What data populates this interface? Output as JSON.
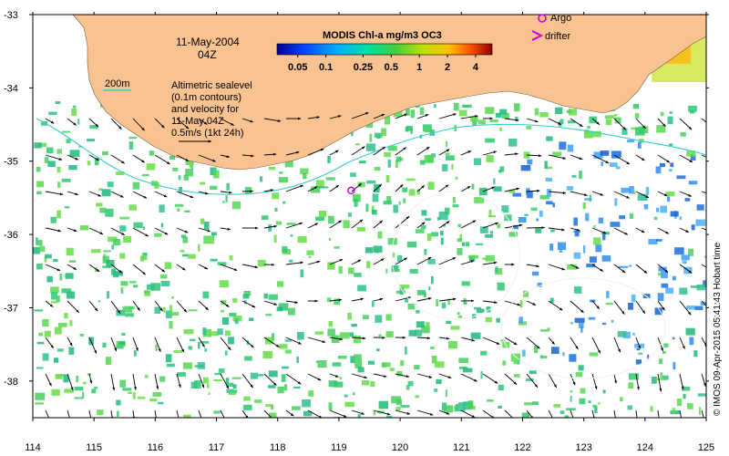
{
  "map": {
    "date_line1": "11-May-2004",
    "date_line2": "04Z",
    "contour_label": "200m",
    "annotation": [
      "Altimetric sealevel",
      "(0.1m contours)",
      "and velocity for",
      "11-May 04Z",
      "0.5m/s (1kt 24h)"
    ],
    "colorbar_title": "MODIS Chl-a mg/m3 OC3",
    "colorbar_ticks": [
      "0.05",
      "0.1",
      "0.25",
      "0.5",
      "1",
      "2",
      "4"
    ],
    "legend_argo": "Argo",
    "legend_drifter": "drifter",
    "credit": "© IMOS 09-Apr-2015 05:41:43 Hobart time",
    "colors": {
      "land": "#f9c291",
      "argo": "#d000d0",
      "contour": "#33cccc"
    }
  },
  "chart_data": {
    "type": "map",
    "x_axis": {
      "label": "",
      "ticks": [
        114,
        115,
        116,
        117,
        118,
        119,
        120,
        121,
        122,
        123,
        124,
        125
      ],
      "range": [
        114,
        125
      ]
    },
    "y_axis": {
      "label": "",
      "ticks": [
        -33,
        -34,
        -35,
        -36,
        -37,
        -38
      ],
      "range": [
        -38.5,
        -33
      ]
    },
    "colorbar": {
      "scale": "log",
      "range": [
        0.03,
        6
      ],
      "ticks": [
        0.05,
        0.1,
        0.25,
        0.5,
        1,
        2,
        4
      ]
    },
    "argo_float": {
      "lon": 119.2,
      "lat": -35.4
    }
  }
}
